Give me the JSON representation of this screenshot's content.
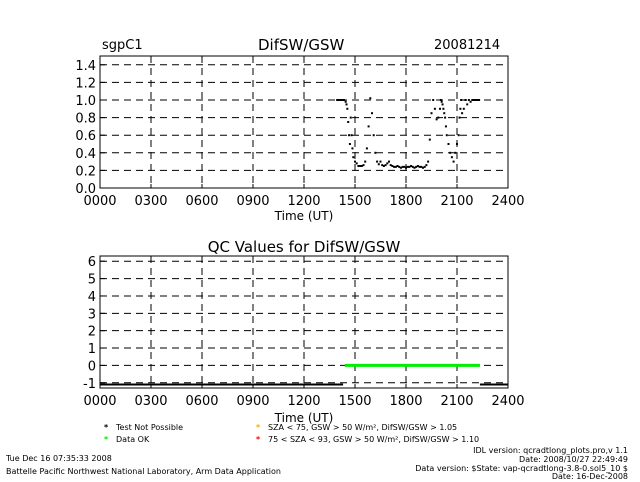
{
  "header": {
    "site": "sgpC1",
    "title": "DifSW/GSW",
    "date": "20081214"
  },
  "chart_data": [
    {
      "type": "scatter",
      "title": "DifSW/GSW",
      "xlabel": "Time (UT)",
      "ylabel": "",
      "xlim": [
        0,
        24
      ],
      "ylim": [
        0,
        1.5
      ],
      "x_ticks": [
        0,
        3,
        6,
        9,
        12,
        15,
        18,
        21,
        24
      ],
      "x_tick_labels": [
        "0000",
        "0300",
        "0600",
        "0900",
        "1200",
        "1500",
        "1800",
        "2100",
        "2400"
      ],
      "y_ticks": [
        0,
        0.2,
        0.4,
        0.6,
        0.8,
        1.0,
        1.2,
        1.4
      ],
      "y_tick_labels": [
        "0.0",
        "0.2",
        "0.4",
        "0.6",
        "0.8",
        "1.0",
        "1.2",
        "1.4"
      ],
      "grid": true,
      "series": [
        {
          "color": "#000000",
          "x": [
            13.95,
            14.05,
            14.15,
            14.25,
            14.35,
            14.45,
            14.5,
            14.55,
            14.6,
            14.65,
            14.7,
            14.75,
            14.8,
            14.85,
            14.9,
            15.0,
            15.1,
            15.2,
            15.3,
            15.4,
            15.5,
            15.6,
            15.7,
            15.8,
            15.9,
            16.0,
            16.1,
            16.2,
            16.3,
            16.4,
            16.5,
            16.6,
            16.7,
            16.8,
            16.9,
            17.0,
            17.1,
            17.2,
            17.3,
            17.4,
            17.5,
            17.6,
            17.7,
            17.8,
            17.9,
            18.0,
            18.1,
            18.2,
            18.3,
            18.4,
            18.5,
            18.6,
            18.7,
            18.8,
            18.9,
            19.0,
            19.1,
            19.2,
            19.3,
            19.4,
            19.5,
            19.6,
            19.7,
            19.8,
            19.9,
            20.0,
            20.05,
            20.1,
            20.15,
            20.2,
            20.25,
            20.3,
            20.35,
            20.4,
            20.5,
            20.6,
            20.7,
            20.8,
            20.9,
            21.0,
            21.1,
            21.15,
            21.2,
            21.25,
            21.3,
            21.4,
            21.5,
            21.6,
            21.7,
            21.8,
            21.9,
            22.0,
            22.1,
            22.2,
            22.3
          ],
          "y": [
            1.0,
            1.0,
            1.0,
            1.0,
            1.0,
            0.98,
            0.95,
            0.9,
            0.75,
            0.6,
            0.5,
            0.8,
            0.6,
            0.45,
            0.35,
            0.3,
            0.28,
            0.25,
            0.25,
            0.25,
            0.26,
            0.3,
            0.45,
            0.7,
            1.02,
            0.85,
            0.6,
            0.4,
            0.3,
            0.27,
            0.3,
            0.26,
            0.25,
            0.26,
            0.28,
            0.3,
            0.26,
            0.25,
            0.24,
            0.24,
            0.25,
            0.24,
            0.23,
            0.24,
            0.24,
            0.23,
            0.24,
            0.24,
            0.25,
            0.24,
            0.23,
            0.24,
            0.25,
            0.24,
            0.24,
            0.23,
            0.24,
            0.26,
            0.3,
            0.55,
            0.85,
            1.0,
            0.9,
            0.78,
            0.8,
            0.9,
            1.0,
            0.98,
            0.95,
            0.9,
            0.85,
            0.8,
            0.7,
            0.6,
            0.5,
            0.4,
            0.35,
            0.3,
            0.4,
            0.5,
            0.6,
            0.8,
            0.9,
            1.0,
            0.85,
            0.9,
            1.0,
            0.95,
            1.0,
            0.98,
            1.0,
            1.0,
            1.0,
            1.0,
            1.0
          ]
        }
      ]
    },
    {
      "type": "line",
      "title": "QC Values for DifSW/GSW",
      "xlabel": "Time (UT)",
      "ylabel": "",
      "xlim": [
        0,
        24
      ],
      "ylim": [
        -1.3,
        6.3
      ],
      "x_ticks": [
        0,
        3,
        6,
        9,
        12,
        15,
        18,
        21,
        24
      ],
      "x_tick_labels": [
        "0000",
        "0300",
        "0600",
        "0900",
        "1200",
        "1500",
        "1800",
        "2100",
        "2400"
      ],
      "y_ticks": [
        -1,
        0,
        1,
        2,
        3,
        4,
        5,
        6
      ],
      "y_tick_labels": [
        "-1",
        "0",
        "1",
        "2",
        "3",
        "4",
        "5",
        "6"
      ],
      "grid": true,
      "series": [
        {
          "name": "Test Not Possible",
          "color": "#000000",
          "x": [
            0,
            14.3
          ],
          "y": [
            -1.1,
            -1.1
          ]
        },
        {
          "name": "Data OK",
          "color": "#00ee00",
          "x": [
            14.4,
            22.35
          ],
          "y": [
            0,
            0
          ]
        },
        {
          "color": "#000000",
          "x": [
            22.35,
            24.0
          ],
          "y": [
            -1.1,
            -1.1
          ]
        }
      ]
    }
  ],
  "legend": [
    {
      "marker": "*",
      "color": "#000000",
      "label": "Test Not Possible"
    },
    {
      "marker": "*",
      "color": "#00ee00",
      "label": "Data OK"
    },
    {
      "marker": "*",
      "color": "#ffaa00",
      "label": "SZA < 75, GSW > 50 W/m², DifSW/GSW > 1.05"
    },
    {
      "marker": "*",
      "color": "#ff0000",
      "label": "75 < SZA < 93, GSW > 50 W/m², DifSW/GSW > 1.10"
    }
  ],
  "footer": {
    "timestamp": "Tue Dec 16 07:35:33 2008",
    "organization": "Battelle Pacific Northwest National Laboratory, Arm Data Application",
    "idl_version": "IDL version: qcradtlong_plots.pro,v 1.1",
    "idl_date": "Date: 2008/10/27 22:49:49",
    "data_version": "Data version: $State: vap-qcradtlong-3.8-0.sol5_10 $",
    "data_date": "Date: 16-Dec-2008"
  }
}
